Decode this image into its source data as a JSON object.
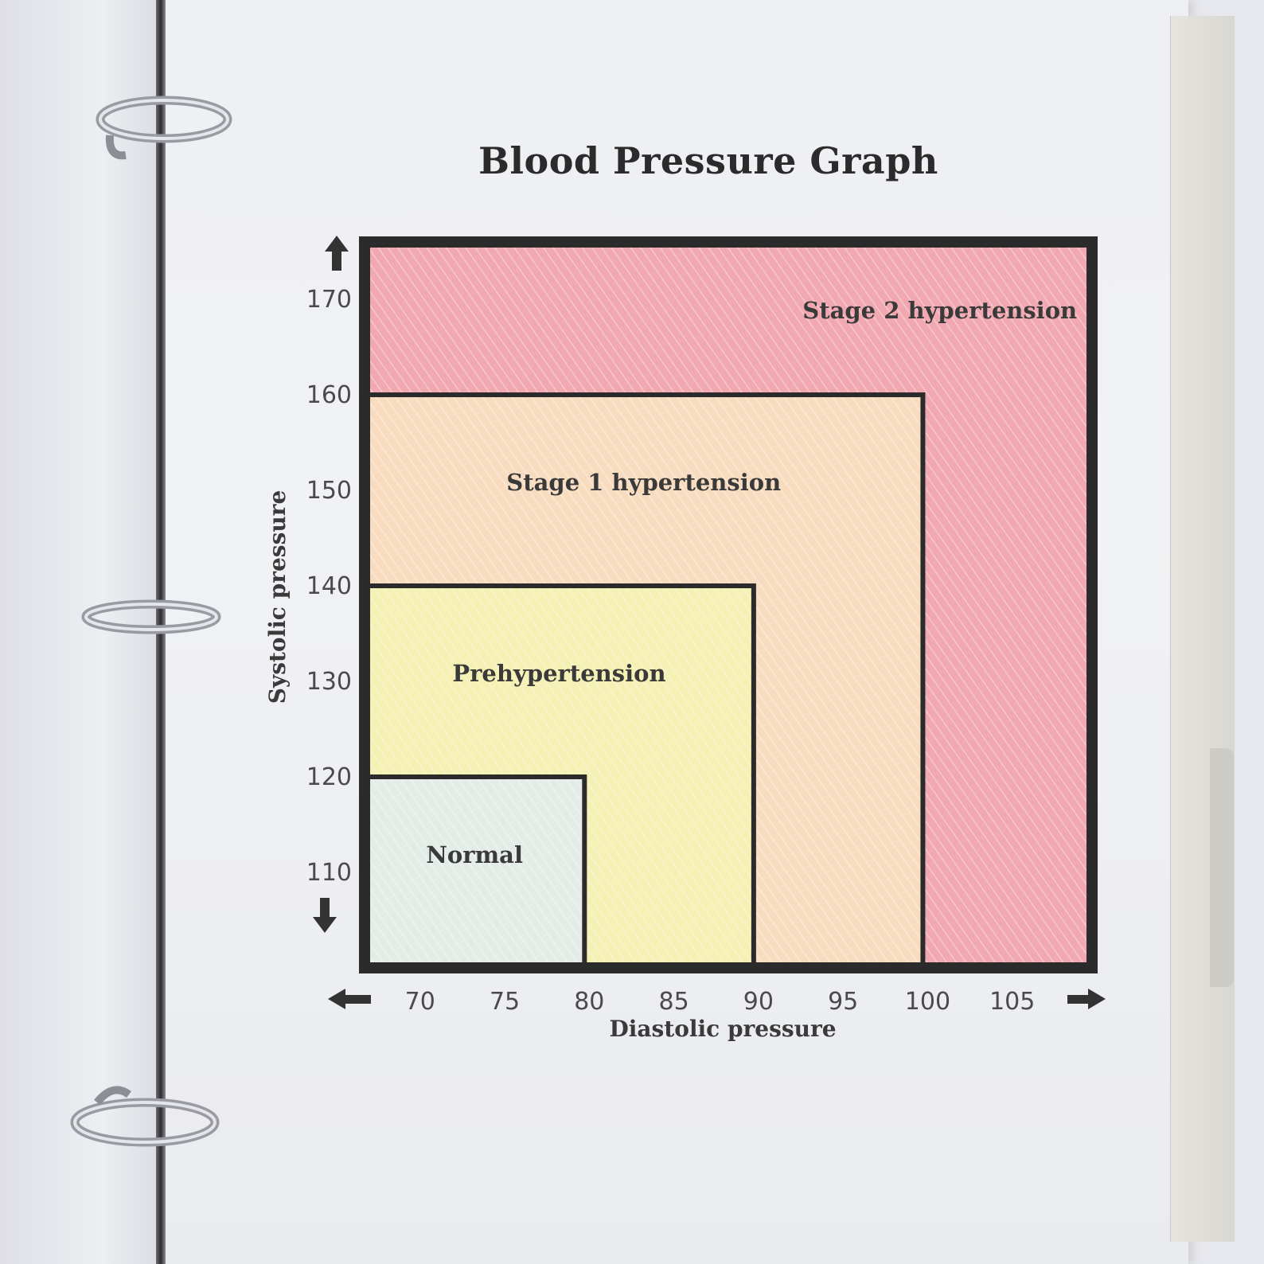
{
  "chart_data": {
    "type": "heatmap",
    "title": "Blood Pressure Graph",
    "xlabel": "Diastolic pressure",
    "ylabel": "Systolic pressure",
    "x_ticks": [
      70,
      75,
      80,
      85,
      90,
      95,
      100,
      105
    ],
    "y_ticks": [
      110,
      120,
      130,
      140,
      150,
      160,
      170
    ],
    "xlim": [
      67,
      110
    ],
    "ylim": [
      100,
      176
    ],
    "categories": [
      {
        "name": "Normal",
        "x_max": 80,
        "y_max": 120,
        "color": "#e3ece7"
      },
      {
        "name": "Prehypertension",
        "x_max": 90,
        "y_max": 140,
        "color": "#f5f0b4"
      },
      {
        "name": "Stage 1 hypertension",
        "x_max": 100,
        "y_max": 160,
        "color": "#f8dcc0"
      },
      {
        "name": "Stage 2 hypertension",
        "x_max": 110,
        "y_max": 176,
        "color": "#f1a8b1"
      }
    ],
    "grid": false,
    "legend": "none"
  },
  "colors": {
    "border": "#2b2b2b",
    "label_text": "#3a3a3a",
    "tick_text": "#4a4a4a"
  },
  "icons": {
    "y_arrows": "up-arrow / down-arrow",
    "x_arrows": "left-arrow / right-arrow"
  }
}
